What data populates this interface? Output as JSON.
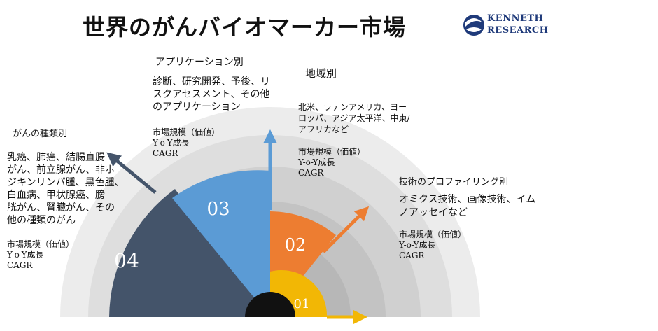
{
  "title": "世界のがんバイオマーカー市場",
  "logo": {
    "line1": "KENNETH",
    "line2": "RESEARCH"
  },
  "segments": [
    {
      "number": "01",
      "color": "#f2b705"
    },
    {
      "number": "02",
      "color": "#ed7d31"
    },
    {
      "number": "03",
      "color": "#5b9bd5"
    },
    {
      "number": "04",
      "color": "#44546a"
    }
  ],
  "sections": {
    "application": {
      "heading": "アプリケーション別",
      "body": [
        "診断、研究開発、予後、リ",
        "スクアセスメント、その他",
        "のアプリケーション"
      ],
      "metrics": [
        "市場規模（価値）",
        "Y-o-Y成長",
        "CAGR"
      ]
    },
    "region": {
      "heading": "地域別",
      "body": [
        "北米、ラテンアメリカ、ヨー",
        "ロッパ、アジア太平洋、中東/",
        "アフリカなど"
      ],
      "metrics": [
        "市場規模（価値）",
        "Y-o-Y成長",
        "CAGR"
      ]
    },
    "cancer_type": {
      "heading": "がんの種類別",
      "body": [
        "乳癌、肺癌、結腸直腸",
        "がん、前立腺がん、非ホ",
        "ジキンリンパ腫、黒色腫、",
        "白血病、甲状腺癌、膀",
        "胱がん、腎臓がん、その",
        "他の種類のがん"
      ],
      "metrics": [
        "市場規模（価値）",
        "Y-o-Y成長",
        "CAGR"
      ]
    },
    "technology": {
      "heading": "技術のプロファイリング別",
      "body": [
        "オミクス技術、画像技術、イム",
        "ノアッセイなど"
      ],
      "metrics": [
        "市場規模（価値）",
        "Y-o-Y成長",
        "CAGR"
      ]
    }
  }
}
